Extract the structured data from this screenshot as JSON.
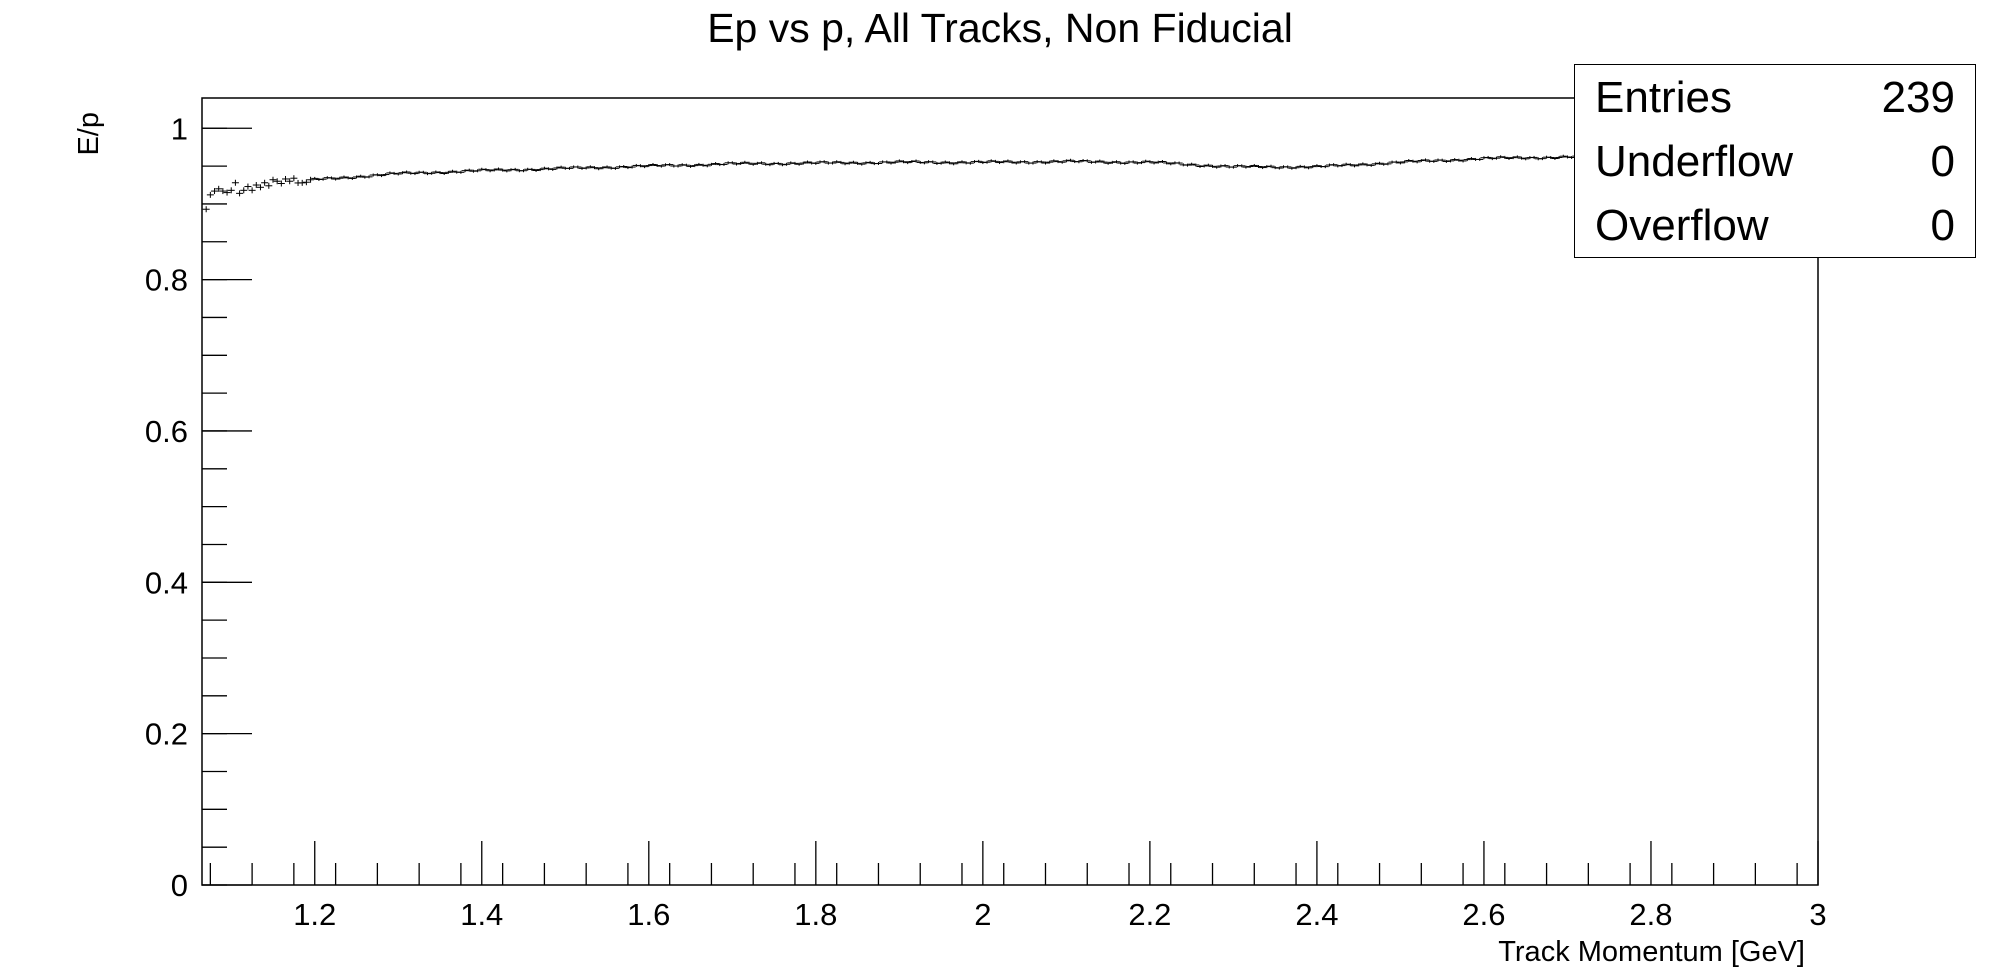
{
  "chart_data": {
    "type": "scatter",
    "title": "Ep vs p, All Tracks, Non Fiducial",
    "xlabel": "Track Momentum [GeV]",
    "ylabel": "E/p",
    "xlim": [
      1.065,
      3.0
    ],
    "ylim": [
      0,
      1.04
    ],
    "x_ticks": [
      "1.2",
      "1.4",
      "1.6",
      "1.8",
      "2",
      "2.2",
      "2.4",
      "2.6",
      "2.8",
      "3"
    ],
    "y_ticks": [
      "0",
      "0.2",
      "0.4",
      "0.6",
      "0.8",
      "1"
    ],
    "grid": false,
    "marker": "cross with error bars",
    "series": [
      {
        "x": [
          1.07,
          1.2,
          1.3,
          1.4,
          1.5,
          1.6,
          1.7,
          1.8,
          1.9,
          2.0,
          2.1,
          2.2,
          2.3,
          2.4,
          2.5,
          2.6,
          2.7,
          2.8
        ],
        "values": [
          0.895,
          0.932,
          0.94,
          0.944,
          0.947,
          0.95,
          0.953,
          0.954,
          0.955,
          0.955,
          0.956,
          0.955,
          0.949,
          0.949,
          0.955,
          0.96,
          0.962,
          0.963
        ],
        "points": [
          [
            1.07,
            0.893
          ],
          [
            1.075,
            0.912
          ],
          [
            1.08,
            0.917
          ],
          [
            1.085,
            0.92
          ],
          [
            1.09,
            0.917
          ],
          [
            1.095,
            0.915
          ],
          [
            1.1,
            0.918
          ],
          [
            1.105,
            0.928
          ],
          [
            1.11,
            0.914
          ],
          [
            1.115,
            0.918
          ],
          [
            1.12,
            0.923
          ],
          [
            1.125,
            0.918
          ],
          [
            1.13,
            0.925
          ],
          [
            1.135,
            0.922
          ],
          [
            1.14,
            0.928
          ],
          [
            1.145,
            0.924
          ],
          [
            1.15,
            0.932
          ],
          [
            1.155,
            0.93
          ],
          [
            1.16,
            0.927
          ],
          [
            1.165,
            0.933
          ],
          [
            1.17,
            0.93
          ],
          [
            1.175,
            0.934
          ]
        ]
      }
    ]
  },
  "stats": {
    "rows": [
      {
        "label": "Entries",
        "value": "239"
      },
      {
        "label": "Underflow",
        "value": "0"
      },
      {
        "label": "Overflow",
        "value": "0"
      }
    ]
  }
}
